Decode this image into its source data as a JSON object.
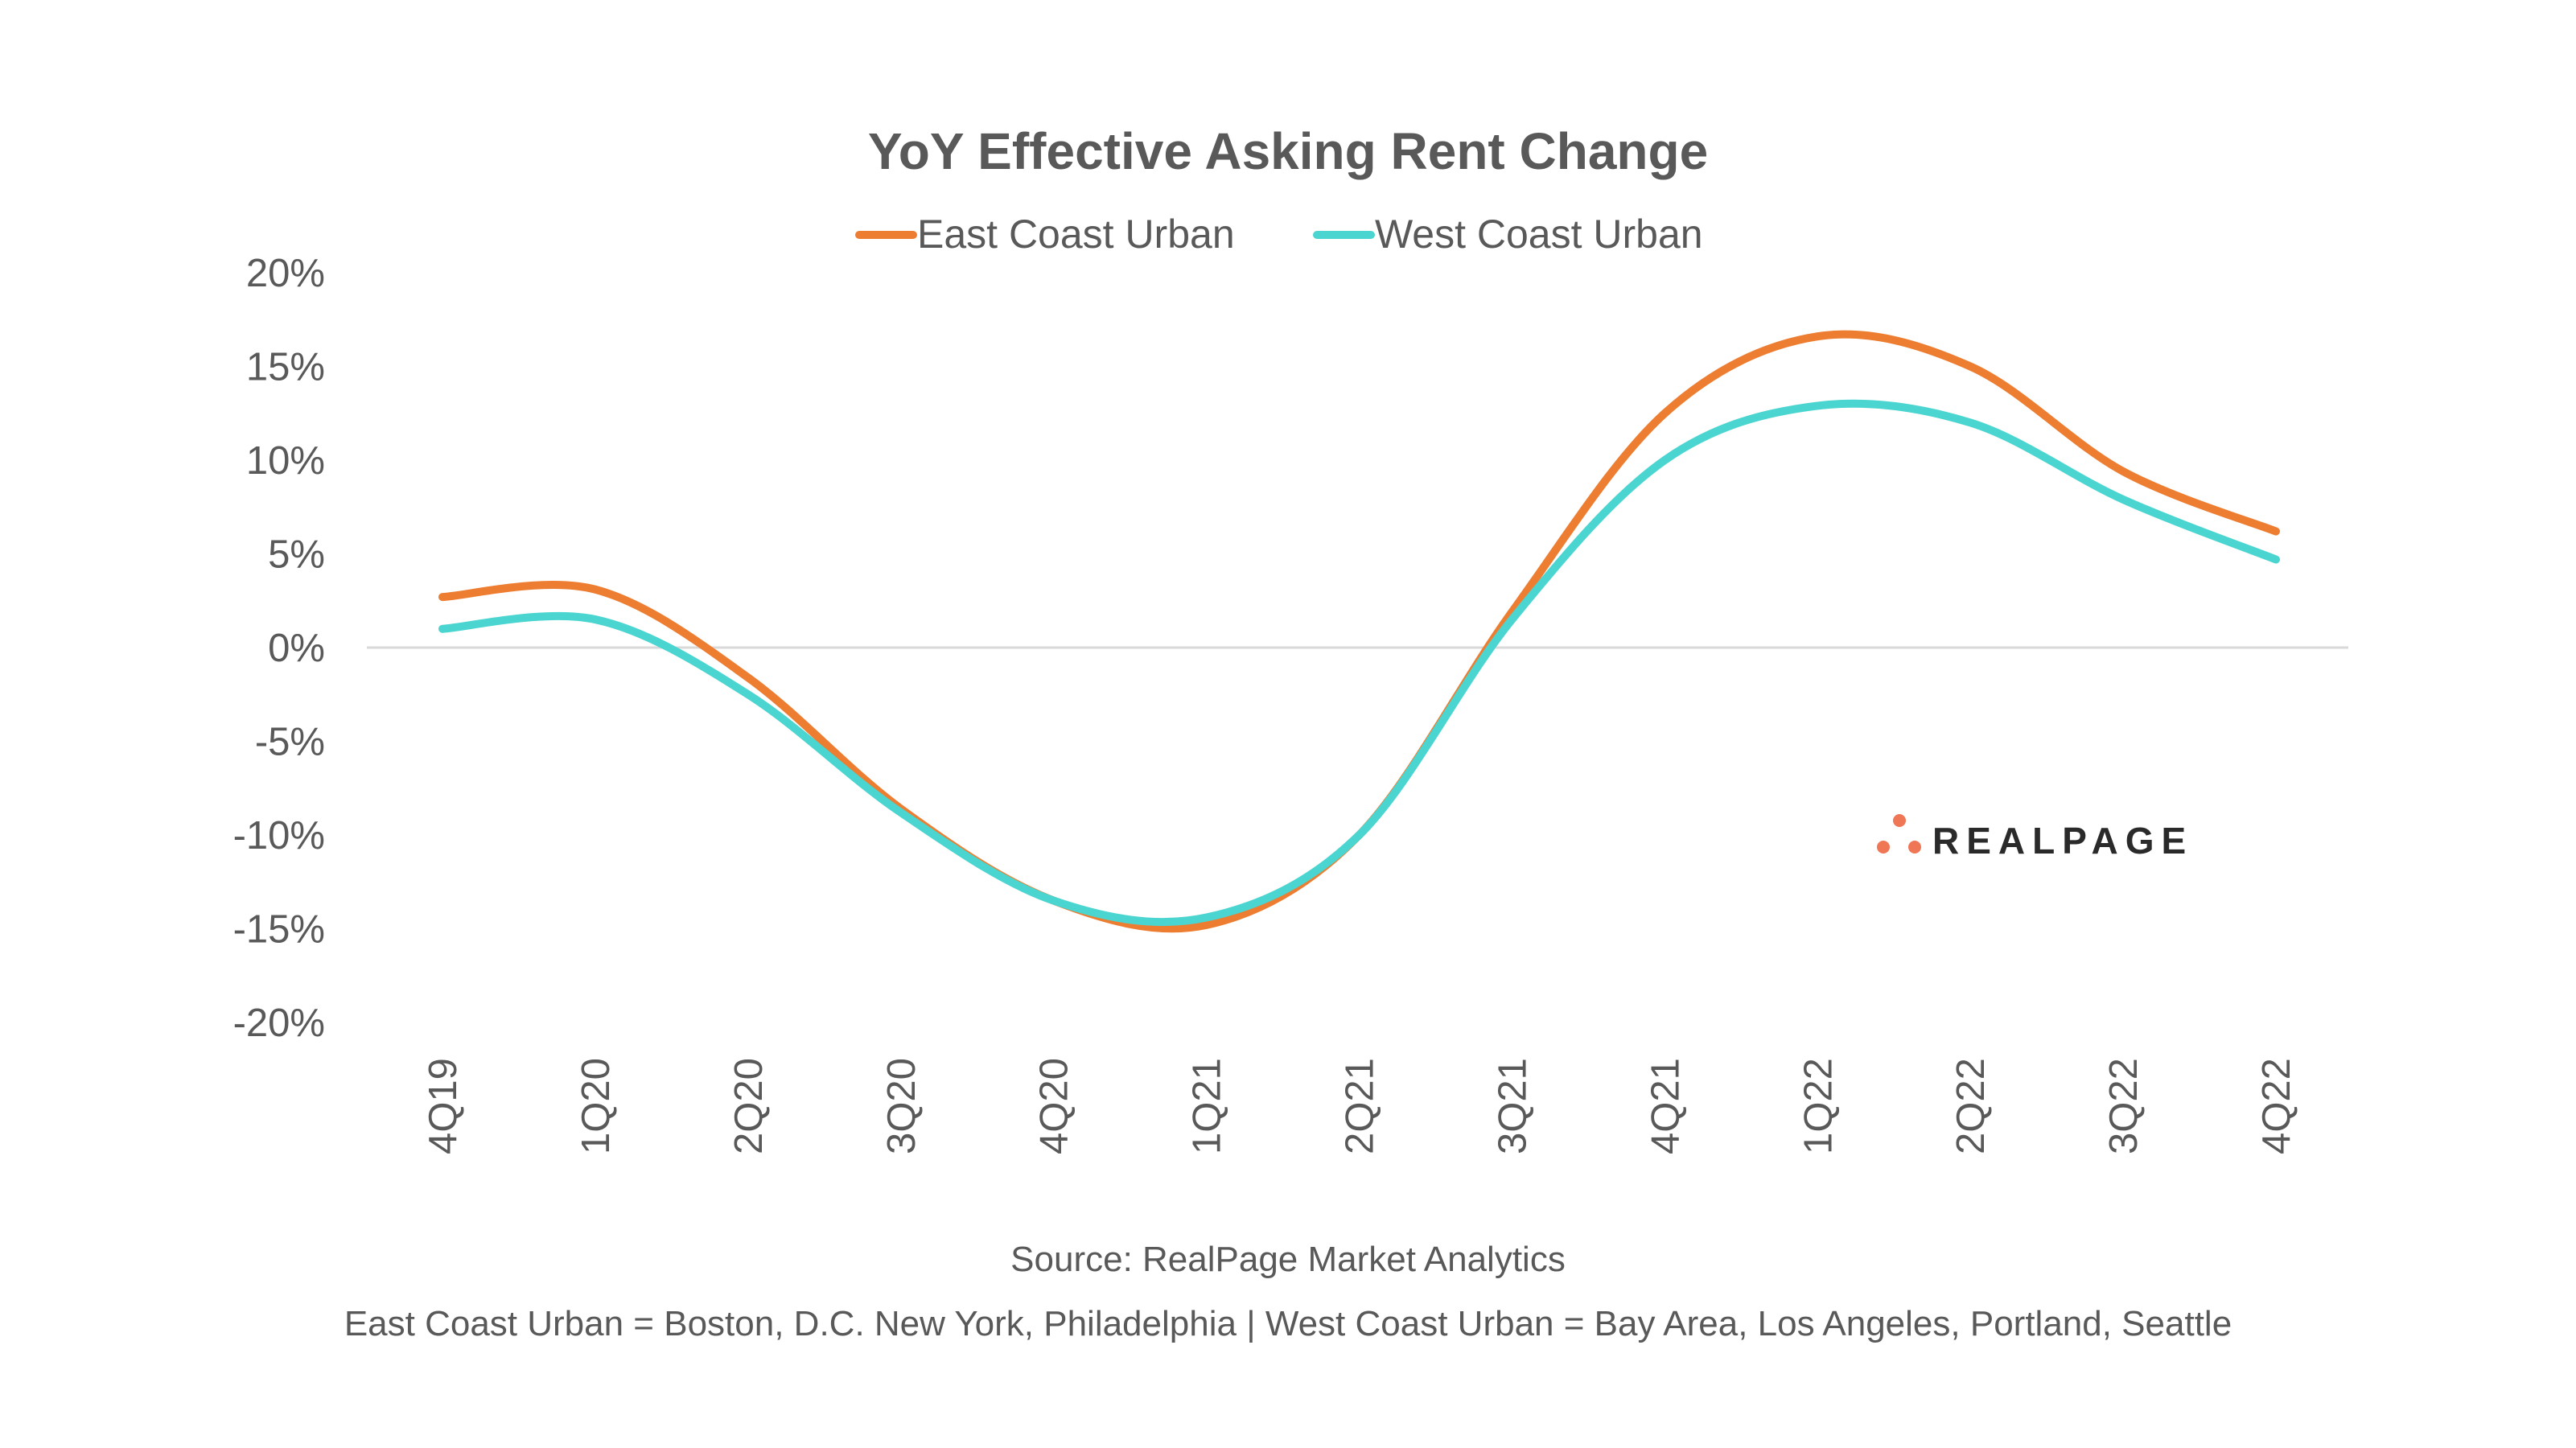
{
  "chart_data": {
    "type": "line",
    "title": "YoY Effective Asking Rent Change",
    "categories": [
      "4Q19",
      "1Q20",
      "2Q20",
      "3Q20",
      "4Q20",
      "1Q21",
      "2Q21",
      "3Q21",
      "4Q21",
      "1Q22",
      "2Q22",
      "3Q22",
      "4Q22"
    ],
    "series": [
      {
        "name": "East Coast Urban",
        "color": "#ED7D31",
        "values": [
          2.7,
          3.1,
          -1.6,
          -8.6,
          -13.5,
          -14.8,
          -10.0,
          1.9,
          12.5,
          16.6,
          15.0,
          9.4,
          6.2
        ]
      },
      {
        "name": "West Coast Urban",
        "color": "#4BD5D0",
        "values": [
          1.0,
          1.5,
          -2.5,
          -8.8,
          -13.5,
          -14.4,
          -10.0,
          1.5,
          10.0,
          12.9,
          12.0,
          7.9,
          4.7
        ]
      }
    ],
    "ylim": [
      -20,
      20
    ],
    "yticks": [
      20,
      15,
      10,
      5,
      0,
      -5,
      -10,
      -15,
      -20
    ],
    "ytick_labels": [
      "20%",
      "15%",
      "10%",
      "5%",
      "0%",
      "-5%",
      "-10%",
      "-15%",
      "-20%"
    ],
    "xlabel": "",
    "ylabel": "",
    "grid": false,
    "legend": "top",
    "smooth": true
  },
  "source": "Source: RealPage Market Analytics",
  "footnote": "East Coast Urban = Boston, D.C. New York, Philadelphia | West Coast Urban = Bay Area, Los Angeles, Portland, Seattle",
  "logo": {
    "text": "REALPAGE",
    "dot_color": "#EF7756"
  }
}
